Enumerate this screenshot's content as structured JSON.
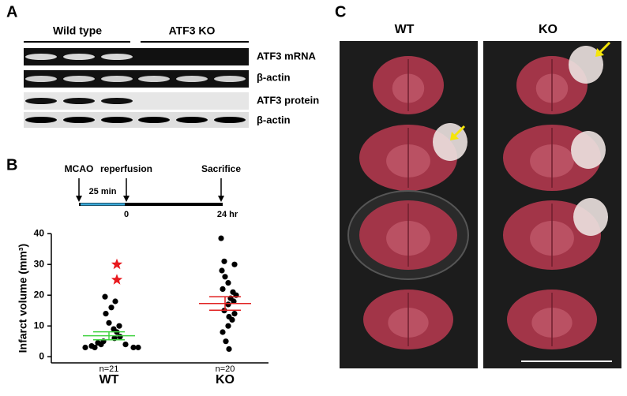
{
  "panel_labels": [
    "A",
    "B",
    "C"
  ],
  "panel_a": {
    "groups": [
      "Wild type",
      "ATF3 KO"
    ],
    "rows": [
      "ATF3 mRNA",
      "β-actin",
      "ATF3 protein",
      "β-actin"
    ]
  },
  "panel_b_timeline": {
    "events": [
      "MCAO",
      "reperfusion",
      "Sacrifice"
    ],
    "duration": "25 min",
    "ticks": [
      "0",
      "24 hr"
    ]
  },
  "chart_data": {
    "type": "scatter",
    "y_label": "Infarct volume (mm³)",
    "categories": [
      "WT",
      "KO"
    ],
    "color": "#000000",
    "ylim": [
      -2,
      40
    ],
    "yticks": [
      0,
      10,
      20,
      30,
      40
    ],
    "groups": [
      {
        "values": [
          19.5,
          18,
          16,
          14,
          11,
          10,
          9,
          8,
          6.5,
          6,
          5,
          4.5,
          4,
          4,
          3.5,
          3,
          3,
          3,
          3
        ],
        "outliers": [
          30,
          25
        ],
        "outlier_color": "#e8191e",
        "mean": 6.8,
        "sem": 1.3,
        "mean_color": "#3fd13f",
        "n_label": "n=21"
      },
      {
        "values": [
          38.5,
          31,
          30,
          28,
          26,
          24,
          22,
          21,
          20,
          19,
          18,
          17,
          15,
          14,
          13,
          12,
          10,
          8,
          5,
          2.5
        ],
        "outliers": [],
        "outlier_color": "#e8191e",
        "mean": 17.3,
        "sem": 2.2,
        "mean_color": "#e02020",
        "n_label": "n=20"
      }
    ]
  },
  "panel_c": {
    "columns": [
      "WT",
      "KO"
    ]
  }
}
